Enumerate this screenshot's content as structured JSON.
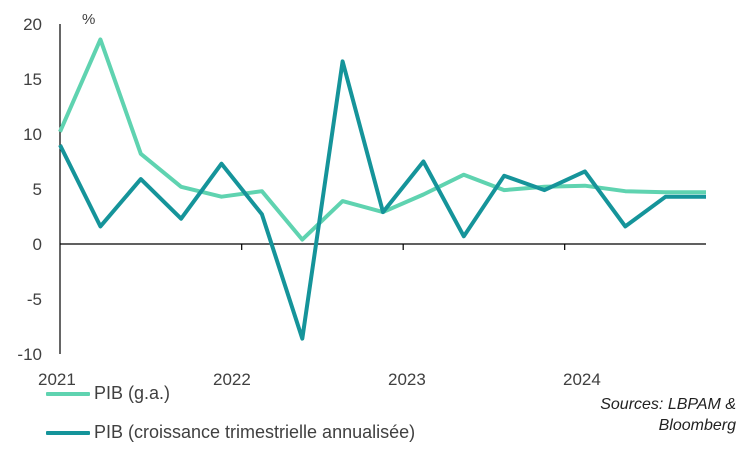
{
  "chart_data": {
    "type": "line",
    "unit_label": "%",
    "x": [
      "2021-Q1",
      "2021-Q2",
      "2021-Q3",
      "2021-Q4",
      "2022-Q1",
      "2022-Q2",
      "2022-Q3",
      "2022-Q4",
      "2023-Q1",
      "2023-Q2",
      "2023-Q3",
      "2023-Q4",
      "2024-Q1",
      "2024-Q2",
      "2024-Q3",
      "2024-Q4",
      "2025-Q1"
    ],
    "x_tick_labels": [
      "2021",
      "2022",
      "2023",
      "2024"
    ],
    "y_ticks": [
      "20",
      "15",
      "10",
      "5",
      "0",
      "-5",
      "-10"
    ],
    "ylim": [
      -10,
      20
    ],
    "series": [
      {
        "name": "PIB (g.a.)",
        "color": "#5fd3b0",
        "values": [
          10.2,
          18.6,
          8.2,
          5.2,
          4.3,
          4.8,
          0.4,
          3.9,
          2.9,
          4.5,
          6.3,
          4.9,
          5.2,
          5.3,
          4.8,
          4.7,
          4.7
        ]
      },
      {
        "name": "PIB (croissance trimestrielle annualisée)",
        "color": "#15949a",
        "values": [
          9.0,
          1.6,
          5.9,
          2.3,
          7.3,
          2.7,
          -8.6,
          16.6,
          2.9,
          7.5,
          0.7,
          6.2,
          4.9,
          6.6,
          1.6,
          4.3,
          4.3
        ]
      }
    ]
  },
  "legend": {
    "item1": "PIB (g.a.)",
    "item2": "PIB (croissance trimestrielle annualisée)"
  },
  "source": {
    "line1": "Sources: LBPAM &",
    "line2": "Bloomberg"
  }
}
